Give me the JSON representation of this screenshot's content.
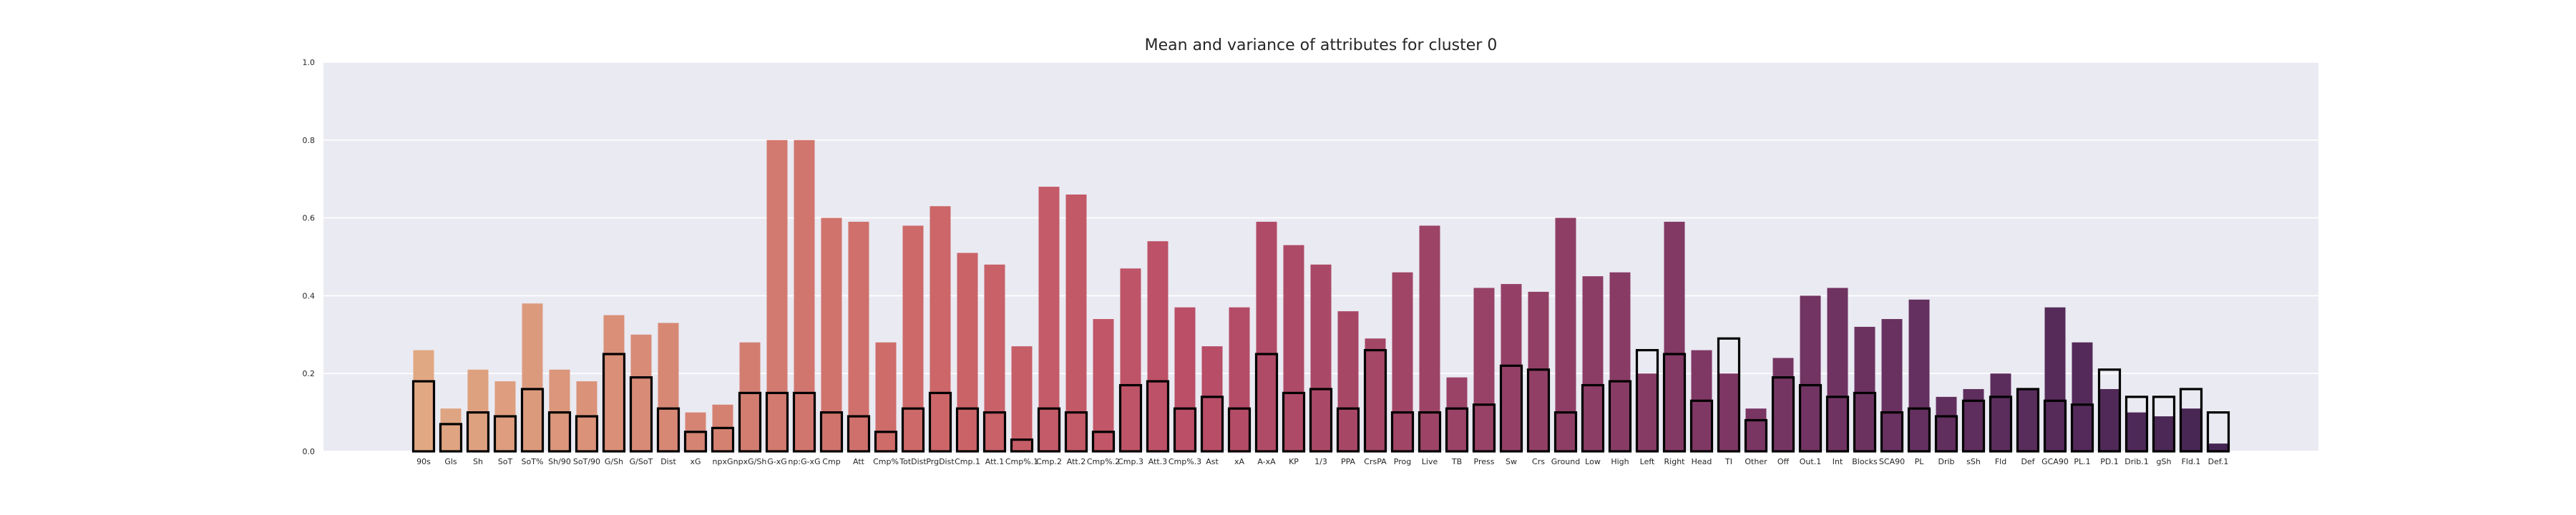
{
  "chart_data": {
    "type": "bar",
    "title": "Mean and variance of attributes for cluster 0",
    "xlabel": "",
    "ylabel": "",
    "ylim": [
      0,
      1.0
    ],
    "yticks": [
      "0.0",
      "0.2",
      "0.4",
      "0.6",
      "0.8",
      "1.0"
    ],
    "grid": true,
    "legend": "none",
    "background_color": "#eaeaf2",
    "palette": "rocket (light to dark)",
    "palette_colors": [
      "#e0a883",
      "#d68674",
      "#cc6668",
      "#b94e67",
      "#9b4366",
      "#7f3864",
      "#5f2e5e",
      "#452653"
    ],
    "categories": [
      "90s",
      "Gls",
      "Sh",
      "SoT",
      "SoT%",
      "Sh/90",
      "SoT/90",
      "G/Sh",
      "G/SoT",
      "Dist",
      "xG",
      "npxG",
      "npxG/Sh",
      "G-xG",
      "np:G-xG",
      "Cmp",
      "Att",
      "Cmp%",
      "TotDist",
      "PrgDist",
      "Cmp.1",
      "Att.1",
      "Cmp%.1",
      "Cmp.2",
      "Att.2",
      "Cmp%.2",
      "Cmp.3",
      "Att.3",
      "Cmp%.3",
      "Ast",
      "xA",
      "A-xA",
      "KP",
      "1/3",
      "PPA",
      "CrsPA",
      "Prog",
      "Live",
      "TB",
      "Press",
      "Sw",
      "Crs",
      "Ground",
      "Low",
      "High",
      "Left",
      "Right",
      "Head",
      "TI",
      "Other",
      "Off",
      "Out.1",
      "Int",
      "Blocks",
      "SCA90",
      "PL",
      "Drib",
      "sSh",
      "Fld",
      "Def",
      "GCA90",
      "PL.1",
      "PD.1",
      "Drib.1",
      "gSh",
      "Fld.1",
      "Def.1"
    ],
    "series": [
      {
        "name": "",
        "values": [
          0.26,
          0.11,
          0.21,
          0.18,
          0.38,
          0.21,
          0.18,
          0.35,
          0.3,
          0.33,
          0.1,
          0.12,
          0.28,
          0.8,
          0.8,
          0.6,
          0.59,
          0.28,
          0.58,
          0.63,
          0.51,
          0.48,
          0.27,
          0.68,
          0.66,
          0.34,
          0.47,
          0.54,
          0.37,
          0.27,
          0.37,
          0.59,
          0.53,
          0.48,
          0.36,
          0.29,
          0.46,
          0.58,
          0.19,
          0.42,
          0.43,
          0.41,
          0.6,
          0.45,
          0.46,
          0.2,
          0.59,
          0.26,
          0.2,
          0.11,
          0.24,
          0.4,
          0.42,
          0.32,
          0.34,
          0.39,
          0.14,
          0.16,
          0.2,
          0.16,
          0.37,
          0.28,
          0.16,
          0.1,
          0.09,
          0.11,
          0.02
        ]
      },
      {
        "name": "",
        "values": [
          0.18,
          0.07,
          0.1,
          0.09,
          0.16,
          0.1,
          0.09,
          0.25,
          0.19,
          0.11,
          0.05,
          0.06,
          0.15,
          0.15,
          0.15,
          0.1,
          0.09,
          0.05,
          0.11,
          0.15,
          0.11,
          0.1,
          0.03,
          0.11,
          0.1,
          0.05,
          0.17,
          0.18,
          0.11,
          0.14,
          0.11,
          0.25,
          0.15,
          0.16,
          0.11,
          0.26,
          0.1,
          0.1,
          0.11,
          0.12,
          0.22,
          0.21,
          0.1,
          0.17,
          0.18,
          0.26,
          0.25,
          0.13,
          0.29,
          0.08,
          0.19,
          0.17,
          0.14,
          0.15,
          0.1,
          0.11,
          0.09,
          0.13,
          0.14,
          0.16,
          0.13,
          0.12,
          0.21,
          0.14,
          0.14,
          0.16,
          0.1
        ]
      }
    ]
  }
}
